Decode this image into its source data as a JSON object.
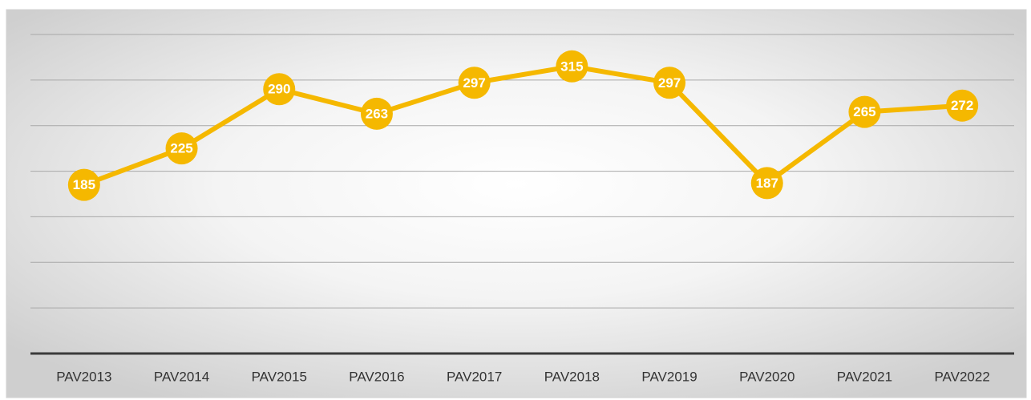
{
  "chart_data": {
    "type": "line",
    "categories": [
      "PAV2013",
      "PAV2014",
      "PAV2015",
      "PAV2016",
      "PAV2017",
      "PAV2018",
      "PAV2019",
      "PAV2020",
      "PAV2021",
      "PAV2022"
    ],
    "values": [
      185,
      225,
      290,
      263,
      297,
      315,
      297,
      187,
      265,
      272
    ],
    "color": "#f5b800",
    "ylim": [
      0,
      350
    ],
    "yticks": [
      0,
      50,
      100,
      150,
      200,
      250,
      300,
      350
    ],
    "grid": true
  }
}
